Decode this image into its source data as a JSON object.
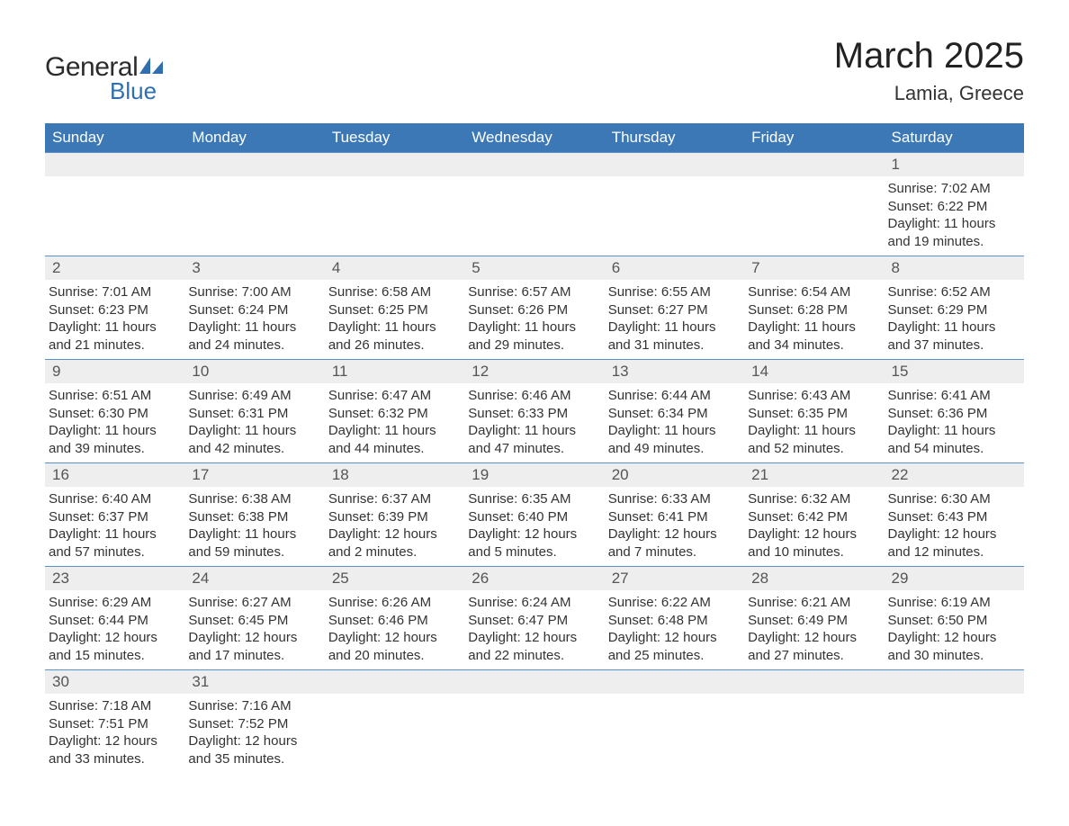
{
  "logo": {
    "general": "General",
    "blue": "Blue"
  },
  "title": "March 2025",
  "location": "Lamia, Greece",
  "colors": {
    "header_bg": "#3b78b5",
    "header_text": "#ffffff",
    "row_border": "#5a92c8",
    "daynum_bg": "#eeeeee",
    "text": "#333333",
    "logo_blue": "#2f6fb0"
  },
  "weekdays": [
    "Sunday",
    "Monday",
    "Tuesday",
    "Wednesday",
    "Thursday",
    "Friday",
    "Saturday"
  ],
  "grid": [
    [
      {
        "empty": true
      },
      {
        "empty": true
      },
      {
        "empty": true
      },
      {
        "empty": true
      },
      {
        "empty": true
      },
      {
        "empty": true
      },
      {
        "day": "1",
        "sunrise": "Sunrise: 7:02 AM",
        "sunset": "Sunset: 6:22 PM",
        "daylight1": "Daylight: 11 hours",
        "daylight2": "and 19 minutes."
      }
    ],
    [
      {
        "day": "2",
        "sunrise": "Sunrise: 7:01 AM",
        "sunset": "Sunset: 6:23 PM",
        "daylight1": "Daylight: 11 hours",
        "daylight2": "and 21 minutes."
      },
      {
        "day": "3",
        "sunrise": "Sunrise: 7:00 AM",
        "sunset": "Sunset: 6:24 PM",
        "daylight1": "Daylight: 11 hours",
        "daylight2": "and 24 minutes."
      },
      {
        "day": "4",
        "sunrise": "Sunrise: 6:58 AM",
        "sunset": "Sunset: 6:25 PM",
        "daylight1": "Daylight: 11 hours",
        "daylight2": "and 26 minutes."
      },
      {
        "day": "5",
        "sunrise": "Sunrise: 6:57 AM",
        "sunset": "Sunset: 6:26 PM",
        "daylight1": "Daylight: 11 hours",
        "daylight2": "and 29 minutes."
      },
      {
        "day": "6",
        "sunrise": "Sunrise: 6:55 AM",
        "sunset": "Sunset: 6:27 PM",
        "daylight1": "Daylight: 11 hours",
        "daylight2": "and 31 minutes."
      },
      {
        "day": "7",
        "sunrise": "Sunrise: 6:54 AM",
        "sunset": "Sunset: 6:28 PM",
        "daylight1": "Daylight: 11 hours",
        "daylight2": "and 34 minutes."
      },
      {
        "day": "8",
        "sunrise": "Sunrise: 6:52 AM",
        "sunset": "Sunset: 6:29 PM",
        "daylight1": "Daylight: 11 hours",
        "daylight2": "and 37 minutes."
      }
    ],
    [
      {
        "day": "9",
        "sunrise": "Sunrise: 6:51 AM",
        "sunset": "Sunset: 6:30 PM",
        "daylight1": "Daylight: 11 hours",
        "daylight2": "and 39 minutes."
      },
      {
        "day": "10",
        "sunrise": "Sunrise: 6:49 AM",
        "sunset": "Sunset: 6:31 PM",
        "daylight1": "Daylight: 11 hours",
        "daylight2": "and 42 minutes."
      },
      {
        "day": "11",
        "sunrise": "Sunrise: 6:47 AM",
        "sunset": "Sunset: 6:32 PM",
        "daylight1": "Daylight: 11 hours",
        "daylight2": "and 44 minutes."
      },
      {
        "day": "12",
        "sunrise": "Sunrise: 6:46 AM",
        "sunset": "Sunset: 6:33 PM",
        "daylight1": "Daylight: 11 hours",
        "daylight2": "and 47 minutes."
      },
      {
        "day": "13",
        "sunrise": "Sunrise: 6:44 AM",
        "sunset": "Sunset: 6:34 PM",
        "daylight1": "Daylight: 11 hours",
        "daylight2": "and 49 minutes."
      },
      {
        "day": "14",
        "sunrise": "Sunrise: 6:43 AM",
        "sunset": "Sunset: 6:35 PM",
        "daylight1": "Daylight: 11 hours",
        "daylight2": "and 52 minutes."
      },
      {
        "day": "15",
        "sunrise": "Sunrise: 6:41 AM",
        "sunset": "Sunset: 6:36 PM",
        "daylight1": "Daylight: 11 hours",
        "daylight2": "and 54 minutes."
      }
    ],
    [
      {
        "day": "16",
        "sunrise": "Sunrise: 6:40 AM",
        "sunset": "Sunset: 6:37 PM",
        "daylight1": "Daylight: 11 hours",
        "daylight2": "and 57 minutes."
      },
      {
        "day": "17",
        "sunrise": "Sunrise: 6:38 AM",
        "sunset": "Sunset: 6:38 PM",
        "daylight1": "Daylight: 11 hours",
        "daylight2": "and 59 minutes."
      },
      {
        "day": "18",
        "sunrise": "Sunrise: 6:37 AM",
        "sunset": "Sunset: 6:39 PM",
        "daylight1": "Daylight: 12 hours",
        "daylight2": "and 2 minutes."
      },
      {
        "day": "19",
        "sunrise": "Sunrise: 6:35 AM",
        "sunset": "Sunset: 6:40 PM",
        "daylight1": "Daylight: 12 hours",
        "daylight2": "and 5 minutes."
      },
      {
        "day": "20",
        "sunrise": "Sunrise: 6:33 AM",
        "sunset": "Sunset: 6:41 PM",
        "daylight1": "Daylight: 12 hours",
        "daylight2": "and 7 minutes."
      },
      {
        "day": "21",
        "sunrise": "Sunrise: 6:32 AM",
        "sunset": "Sunset: 6:42 PM",
        "daylight1": "Daylight: 12 hours",
        "daylight2": "and 10 minutes."
      },
      {
        "day": "22",
        "sunrise": "Sunrise: 6:30 AM",
        "sunset": "Sunset: 6:43 PM",
        "daylight1": "Daylight: 12 hours",
        "daylight2": "and 12 minutes."
      }
    ],
    [
      {
        "day": "23",
        "sunrise": "Sunrise: 6:29 AM",
        "sunset": "Sunset: 6:44 PM",
        "daylight1": "Daylight: 12 hours",
        "daylight2": "and 15 minutes."
      },
      {
        "day": "24",
        "sunrise": "Sunrise: 6:27 AM",
        "sunset": "Sunset: 6:45 PM",
        "daylight1": "Daylight: 12 hours",
        "daylight2": "and 17 minutes."
      },
      {
        "day": "25",
        "sunrise": "Sunrise: 6:26 AM",
        "sunset": "Sunset: 6:46 PM",
        "daylight1": "Daylight: 12 hours",
        "daylight2": "and 20 minutes."
      },
      {
        "day": "26",
        "sunrise": "Sunrise: 6:24 AM",
        "sunset": "Sunset: 6:47 PM",
        "daylight1": "Daylight: 12 hours",
        "daylight2": "and 22 minutes."
      },
      {
        "day": "27",
        "sunrise": "Sunrise: 6:22 AM",
        "sunset": "Sunset: 6:48 PM",
        "daylight1": "Daylight: 12 hours",
        "daylight2": "and 25 minutes."
      },
      {
        "day": "28",
        "sunrise": "Sunrise: 6:21 AM",
        "sunset": "Sunset: 6:49 PM",
        "daylight1": "Daylight: 12 hours",
        "daylight2": "and 27 minutes."
      },
      {
        "day": "29",
        "sunrise": "Sunrise: 6:19 AM",
        "sunset": "Sunset: 6:50 PM",
        "daylight1": "Daylight: 12 hours",
        "daylight2": "and 30 minutes."
      }
    ],
    [
      {
        "day": "30",
        "sunrise": "Sunrise: 7:18 AM",
        "sunset": "Sunset: 7:51 PM",
        "daylight1": "Daylight: 12 hours",
        "daylight2": "and 33 minutes."
      },
      {
        "day": "31",
        "sunrise": "Sunrise: 7:16 AM",
        "sunset": "Sunset: 7:52 PM",
        "daylight1": "Daylight: 12 hours",
        "daylight2": "and 35 minutes."
      },
      {
        "empty": true
      },
      {
        "empty": true
      },
      {
        "empty": true
      },
      {
        "empty": true
      },
      {
        "empty": true
      }
    ]
  ]
}
